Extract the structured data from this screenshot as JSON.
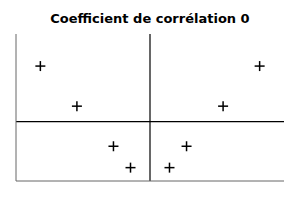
{
  "chart_data": {
    "type": "scatter",
    "title": "Coefficient de corrélation 0",
    "x": [
      -4.5,
      -3.0,
      -1.5,
      -0.8,
      0.8,
      1.5,
      3.0,
      4.5
    ],
    "values": [
      4.0,
      2.5,
      1.0,
      0.2,
      0.2,
      1.0,
      2.5,
      4.0
    ],
    "regression_y": 1.925,
    "axis_x": 0,
    "xlim": [
      -5.5,
      5.5
    ],
    "ylim": [
      -0.3,
      5.2
    ],
    "tick_labels": false,
    "grid": false,
    "marker": "+",
    "color": "#000000"
  }
}
